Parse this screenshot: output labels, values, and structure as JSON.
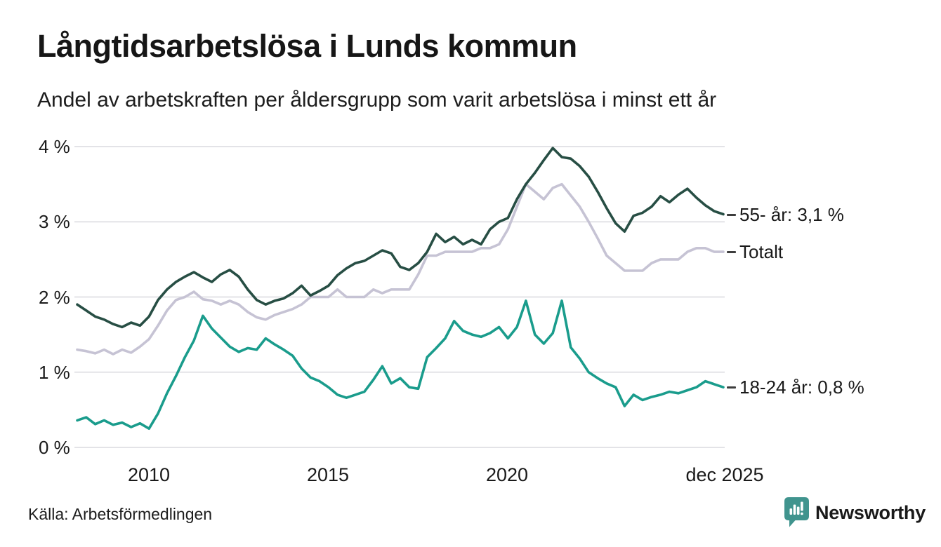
{
  "title": "Långtidsarbetslösa i Lunds kommun",
  "subtitle": "Andel av arbetskraften per åldersgrupp som varit arbetslösa i minst ett år",
  "source": "Källa: Arbetsförmedlingen",
  "branding": {
    "name": "Newsworthy",
    "color": "#3a928c",
    "icon": "newsworthy-badge-bar-chart-icon",
    "icon_color": "#40948e"
  },
  "chart_data": {
    "type": "line",
    "title": "Långtidsarbetslösa i Lunds kommun",
    "subtitle": "Andel av arbetskraften per åldersgrupp som varit arbetslösa i minst ett år",
    "xlabel": "",
    "ylabel": "",
    "xlim": [
      2008,
      2026
    ],
    "ylim": [
      0,
      4
    ],
    "x_start": 2008.0,
    "x_step": 0.25,
    "x_unit": "year (quarterly samples, last point = dec 2025)",
    "y_unit": "%",
    "grid": "horizontal",
    "legend_position": "right-edge-inline-labels",
    "gridline_color": "#e3e3e7",
    "yticks": [
      {
        "value": 0,
        "label": "0 %"
      },
      {
        "value": 1,
        "label": "1 %"
      },
      {
        "value": 2,
        "label": "2 %"
      },
      {
        "value": 3,
        "label": "3 %"
      },
      {
        "value": 4,
        "label": "4 %"
      }
    ],
    "xticks": [
      {
        "value": 2010,
        "label": "2010"
      },
      {
        "value": 2015,
        "label": "2015"
      },
      {
        "value": 2020,
        "label": "2020"
      },
      {
        "value": 2025.92,
        "label": "dec 2025"
      }
    ],
    "series": [
      {
        "id": "55plus",
        "name": "55- år",
        "label": "55- år: 3,1 %",
        "end_value": "3,1 %",
        "color": "#274e44",
        "zorder": 2,
        "values": [
          1.9,
          1.82,
          1.74,
          1.7,
          1.64,
          1.6,
          1.66,
          1.62,
          1.74,
          1.96,
          2.1,
          2.2,
          2.27,
          2.33,
          2.26,
          2.2,
          2.3,
          2.36,
          2.27,
          2.1,
          1.96,
          1.9,
          1.95,
          1.98,
          2.05,
          2.15,
          2.02,
          2.08,
          2.15,
          2.29,
          2.38,
          2.45,
          2.48,
          2.55,
          2.62,
          2.58,
          2.4,
          2.36,
          2.45,
          2.6,
          2.84,
          2.73,
          2.8,
          2.7,
          2.76,
          2.7,
          2.9,
          3.0,
          3.05,
          3.3,
          3.5,
          3.65,
          3.82,
          3.98,
          3.86,
          3.84,
          3.74,
          3.6,
          3.4,
          3.18,
          2.98,
          2.87,
          3.08,
          3.12,
          3.2,
          3.34,
          3.26,
          3.36,
          3.44,
          3.32,
          3.22,
          3.14,
          3.1
        ]
      },
      {
        "id": "totalt",
        "name": "Totalt",
        "label": "Totalt",
        "end_value": "",
        "color": "#c6c3d4",
        "zorder": 1,
        "values": [
          1.3,
          1.28,
          1.25,
          1.3,
          1.24,
          1.3,
          1.26,
          1.34,
          1.44,
          1.62,
          1.82,
          1.96,
          2.0,
          2.07,
          1.97,
          1.95,
          1.9,
          1.95,
          1.9,
          1.8,
          1.73,
          1.7,
          1.76,
          1.8,
          1.84,
          1.9,
          2.0,
          2.0,
          2.0,
          2.1,
          2.0,
          2.0,
          2.0,
          2.1,
          2.05,
          2.1,
          2.1,
          2.1,
          2.3,
          2.55,
          2.55,
          2.6,
          2.6,
          2.6,
          2.6,
          2.65,
          2.65,
          2.7,
          2.9,
          3.2,
          3.5,
          3.4,
          3.3,
          3.45,
          3.5,
          3.35,
          3.2,
          3.0,
          2.78,
          2.55,
          2.45,
          2.35,
          2.35,
          2.35,
          2.45,
          2.5,
          2.5,
          2.5,
          2.6,
          2.65,
          2.65,
          2.6,
          2.6
        ]
      },
      {
        "id": "18to24",
        "name": "18-24 år",
        "label": "18-24 år: 0,8 %",
        "end_value": "0,8 %",
        "color": "#1a9c8c",
        "zorder": 3,
        "values": [
          0.36,
          0.4,
          0.31,
          0.36,
          0.3,
          0.33,
          0.27,
          0.32,
          0.25,
          0.45,
          0.72,
          0.95,
          1.2,
          1.42,
          1.75,
          1.58,
          1.46,
          1.34,
          1.27,
          1.32,
          1.3,
          1.45,
          1.37,
          1.3,
          1.22,
          1.05,
          0.93,
          0.88,
          0.8,
          0.7,
          0.66,
          0.7,
          0.74,
          0.9,
          1.08,
          0.85,
          0.92,
          0.8,
          0.78,
          1.2,
          1.32,
          1.45,
          1.68,
          1.55,
          1.5,
          1.47,
          1.52,
          1.6,
          1.45,
          1.6,
          1.95,
          1.5,
          1.38,
          1.52,
          1.95,
          1.33,
          1.18,
          1.0,
          0.92,
          0.85,
          0.8,
          0.55,
          0.7,
          0.63,
          0.67,
          0.7,
          0.74,
          0.72,
          0.76,
          0.8,
          0.88,
          0.84,
          0.8
        ]
      }
    ]
  }
}
